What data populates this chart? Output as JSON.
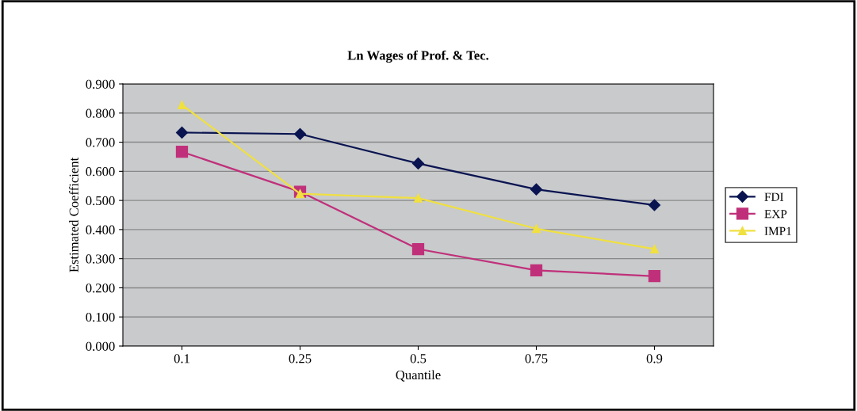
{
  "chart_data": {
    "type": "line",
    "title": "Ln Wages of Prof. & Tec.",
    "xlabel": "Quantile",
    "ylabel": "Estimated Coefficient",
    "categories": [
      "0.1",
      "0.25",
      "0.5",
      "0.75",
      "0.9"
    ],
    "series": [
      {
        "name": "FDI",
        "color": "#0a1450",
        "marker": "diamond",
        "values": [
          0.733,
          0.728,
          0.627,
          0.538,
          0.484
        ]
      },
      {
        "name": "EXP",
        "color": "#c0307a",
        "marker": "square",
        "values": [
          0.667,
          0.53,
          0.333,
          0.26,
          0.24
        ]
      },
      {
        "name": "IMP1",
        "color": "#f0e040",
        "marker": "triangle",
        "values": [
          0.828,
          0.523,
          0.508,
          0.403,
          0.333
        ]
      }
    ],
    "ylim": [
      0,
      0.9
    ],
    "yticks": [
      {
        "value": 0,
        "label": "0.000"
      },
      {
        "value": 0.1,
        "label": "0.100"
      },
      {
        "value": 0.2,
        "label": "0.200"
      },
      {
        "value": 0.3,
        "label": "0.300"
      },
      {
        "value": 0.4,
        "label": "0.400"
      },
      {
        "value": 0.5,
        "label": "0.500"
      },
      {
        "value": 0.6,
        "label": "0.600"
      },
      {
        "value": 0.7,
        "label": "0.700"
      },
      {
        "value": 0.8,
        "label": "0.800"
      },
      {
        "value": 0.9,
        "label": "0.900"
      }
    ],
    "grid": "y",
    "legend": "right"
  }
}
